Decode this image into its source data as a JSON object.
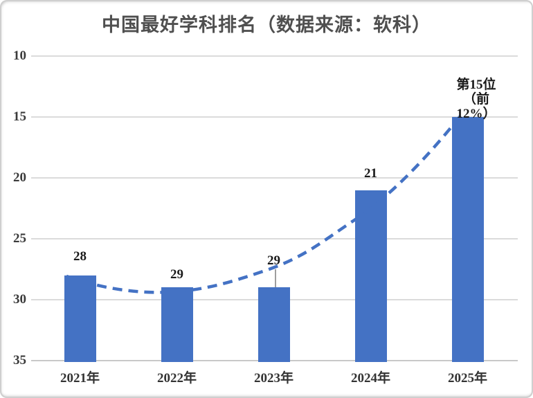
{
  "chart_data": {
    "type": "bar",
    "title": "中国最好学科排名（数据来源：软科）",
    "categories": [
      "2021年",
      "2022年",
      "2023年",
      "2024年",
      "2025年"
    ],
    "values": [
      28,
      29,
      29,
      21,
      15
    ],
    "bar_labels": [
      "28",
      "29",
      "29",
      "21",
      "第15位\n（前12%）"
    ],
    "label_leader_index": 2,
    "yaxis": {
      "ticks": [
        10,
        15,
        20,
        25,
        30,
        35
      ],
      "range": [
        10,
        35
      ],
      "inverted": true
    },
    "xlabel": "",
    "ylabel": "",
    "grid": true,
    "legend": "none",
    "trendline": {
      "style": "dashed",
      "color": "#4472c4"
    },
    "colors": {
      "bar": "#4472c4",
      "gridline": "#dbdbdb",
      "axis_line": "#c8c8c8",
      "title_text": "#4f4f4f",
      "tick_text": "#3b3b3b",
      "label_text": "#1a1a1a",
      "leader_line": "#9e9e9e"
    }
  }
}
